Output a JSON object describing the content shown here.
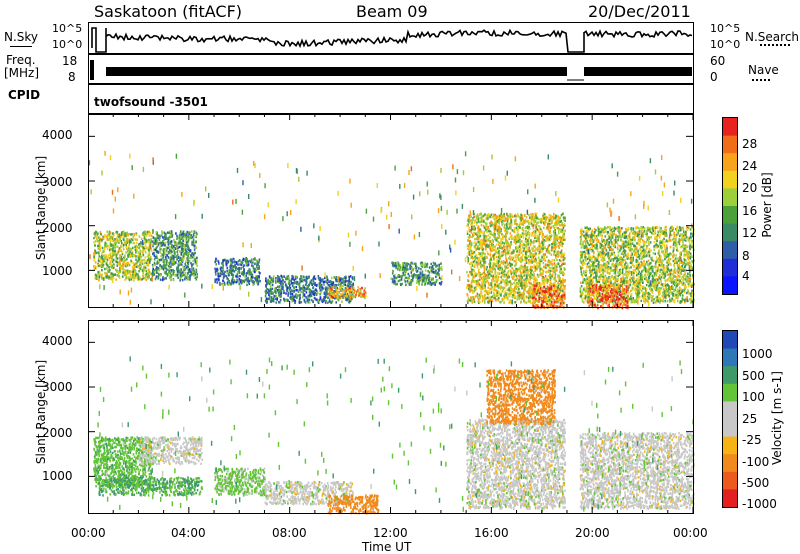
{
  "header": {
    "station": "Saskatoon (fitACF)",
    "beam": "Beam 09",
    "date": "20/Dec/2011"
  },
  "top_panel": {
    "left_label_1": "N.Sky",
    "left_label_2": "Freq.",
    "left_label_3": "[MHz]",
    "cpid_label": "CPID",
    "right_label_1": "N.Search",
    "right_label_2": "Nave",
    "nsky_ticks": [
      "10^5",
      "10^0"
    ],
    "freq_ticks": [
      "18",
      "8"
    ],
    "nsearch_ticks": [
      "10^5",
      "10^0"
    ],
    "nave_ticks": [
      "60",
      "0"
    ],
    "cpid_text": "twofsound -3501"
  },
  "power_panel": {
    "ylabel": "Slant Range [km]",
    "yticks": [
      "4000",
      "3000",
      "2000",
      "1000"
    ],
    "colorbar_label": "Power [dB]",
    "colorbar_ticks": [
      "28",
      "24",
      "20",
      "16",
      "12",
      "8",
      "4"
    ],
    "colorbar_colors": [
      "#e8231f",
      "#f06d1a",
      "#f7a31b",
      "#f2d21e",
      "#9ccf3a",
      "#4aa13c",
      "#3a8a66",
      "#2e5ea8",
      "#1f2ed6",
      "#0a14ff"
    ]
  },
  "velocity_panel": {
    "ylabel": "Slant Range [km]",
    "yticks": [
      "4000",
      "3000",
      "2000",
      "1000"
    ],
    "colorbar_label": "Velocity [m s-1]",
    "colorbar_ticks": [
      "1000",
      "500",
      "100",
      "25",
      "-25",
      "-100",
      "-500",
      "-1000"
    ],
    "colorbar_colors": [
      "#2148b5",
      "#2f78b8",
      "#3f9a6a",
      "#62c436",
      "#c8c8c8",
      "#c8c8c8",
      "#f5b316",
      "#f08a1c",
      "#ec5a20",
      "#e41f1f"
    ]
  },
  "xaxis": {
    "label": "Time UT",
    "ticks": [
      "00:00",
      "04:00",
      "08:00",
      "12:00",
      "16:00",
      "20:00",
      "00:00"
    ]
  },
  "chart_data": [
    {
      "type": "line",
      "title": "Saskatoon (fitACF) Beam 09 20/Dec/2011",
      "series": [
        {
          "name": "N.Sky",
          "values": [
            3.5,
            3.2,
            3.0,
            2.8,
            2.9,
            3.1,
            3.4
          ]
        },
        {
          "name": "Freq.",
          "values": [
            11,
            11,
            11,
            11,
            11,
            11,
            11
          ]
        }
      ],
      "x": [
        "00:00",
        "04:00",
        "08:00",
        "12:00",
        "16:00",
        "20:00",
        "00:00"
      ],
      "xlabel": "Time UT",
      "ylabel": ""
    },
    {
      "type": "heatmap",
      "title": "",
      "xlabel": "Time UT",
      "ylabel": "Slant Range [km]",
      "colorbar_label": "Power [dB]",
      "xlim": [
        0,
        24
      ],
      "ylim": [
        180,
        4500
      ],
      "colorbar_range": [
        0,
        32
      ],
      "cells_note": "Backscatter power cells, hours UT vs slant range km",
      "clusters": [
        {
          "t0": 0.2,
          "t1": 2.5,
          "r0": 800,
          "r1": 1900,
          "level": 18
        },
        {
          "t0": 2.5,
          "t1": 4.3,
          "r0": 800,
          "r1": 1900,
          "level": 12
        },
        {
          "t0": 5.0,
          "t1": 6.8,
          "r0": 700,
          "r1": 1300,
          "level": 10
        },
        {
          "t0": 7.0,
          "t1": 10.5,
          "r0": 300,
          "r1": 900,
          "level": 10
        },
        {
          "t0": 9.5,
          "t1": 11.0,
          "r0": 400,
          "r1": 650,
          "level": 24
        },
        {
          "t0": 12.0,
          "t1": 14.0,
          "r0": 700,
          "r1": 1200,
          "level": 12
        },
        {
          "t0": 15.0,
          "t1": 18.9,
          "r0": 300,
          "r1": 2300,
          "level": 20
        },
        {
          "t0": 17.6,
          "t1": 18.9,
          "r0": 180,
          "r1": 700,
          "level": 28
        },
        {
          "t0": 19.5,
          "t1": 24.0,
          "r0": 300,
          "r1": 2000,
          "level": 18
        },
        {
          "t0": 19.8,
          "t1": 21.4,
          "r0": 180,
          "r1": 700,
          "level": 28
        }
      ]
    },
    {
      "type": "heatmap",
      "title": "",
      "xlabel": "Time UT",
      "ylabel": "Slant Range [km]",
      "colorbar_label": "Velocity [m s-1]",
      "xlim": [
        0,
        24
      ],
      "ylim": [
        180,
        4500
      ],
      "colorbar_range": [
        -1000,
        1000
      ],
      "clusters": [
        {
          "t0": 0.2,
          "t1": 2.5,
          "r0": 800,
          "r1": 1900,
          "level": 60
        },
        {
          "t0": 2.0,
          "t1": 4.5,
          "r0": 1300,
          "r1": 1900,
          "level": 0
        },
        {
          "t0": 0.4,
          "t1": 4.5,
          "r0": 600,
          "r1": 1000,
          "level": 80
        },
        {
          "t0": 5.0,
          "t1": 7.0,
          "r0": 600,
          "r1": 1200,
          "level": 40
        },
        {
          "t0": 7.0,
          "t1": 10.5,
          "r0": 400,
          "r1": 900,
          "level": 0
        },
        {
          "t0": 9.5,
          "t1": 11.5,
          "r0": 200,
          "r1": 600,
          "level": -150
        },
        {
          "t0": 15.0,
          "t1": 18.9,
          "r0": 300,
          "r1": 2300,
          "level": 0
        },
        {
          "t0": 15.8,
          "t1": 18.5,
          "r0": 2200,
          "r1": 3400,
          "level": -300
        },
        {
          "t0": 19.5,
          "t1": 24.0,
          "r0": 300,
          "r1": 2000,
          "level": 0
        }
      ]
    }
  ]
}
